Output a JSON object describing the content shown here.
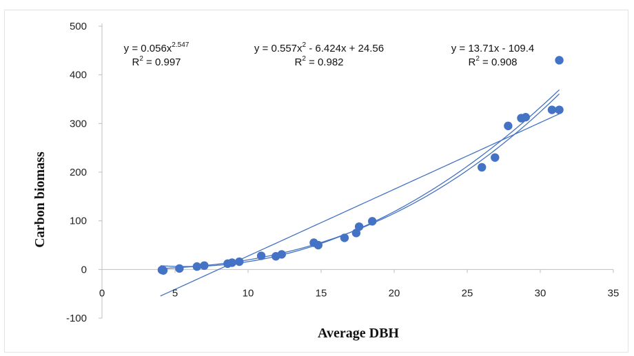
{
  "chart_data": {
    "type": "scatter",
    "title": "",
    "xlabel": "Average DBH",
    "ylabel": "Carbon biomass",
    "xlim": [
      0,
      35
    ],
    "ylim": [
      -100,
      500
    ],
    "x_ticks": [
      "0",
      "5",
      "10",
      "15",
      "20",
      "25",
      "30",
      "35"
    ],
    "y_ticks": [
      "-100",
      "0",
      "100",
      "200",
      "300",
      "400",
      "500"
    ],
    "grid": false,
    "legend": "none",
    "point_color": "#4472C4",
    "line_color": "#4472C4",
    "points": [
      {
        "x": 4.1,
        "y": -1
      },
      {
        "x": 4.2,
        "y": -2
      },
      {
        "x": 5.3,
        "y": 2
      },
      {
        "x": 6.5,
        "y": 6
      },
      {
        "x": 7.0,
        "y": 8
      },
      {
        "x": 8.6,
        "y": 12
      },
      {
        "x": 8.9,
        "y": 14
      },
      {
        "x": 9.4,
        "y": 16
      },
      {
        "x": 10.9,
        "y": 28
      },
      {
        "x": 11.9,
        "y": 27
      },
      {
        "x": 12.3,
        "y": 31
      },
      {
        "x": 14.5,
        "y": 55
      },
      {
        "x": 14.8,
        "y": 50
      },
      {
        "x": 16.6,
        "y": 65
      },
      {
        "x": 17.4,
        "y": 75
      },
      {
        "x": 17.6,
        "y": 88
      },
      {
        "x": 18.5,
        "y": 99
      },
      {
        "x": 26.0,
        "y": 210
      },
      {
        "x": 26.9,
        "y": 230
      },
      {
        "x": 27.8,
        "y": 295
      },
      {
        "x": 28.7,
        "y": 311
      },
      {
        "x": 29.0,
        "y": 313
      },
      {
        "x": 30.8,
        "y": 328
      },
      {
        "x": 31.3,
        "y": 328
      },
      {
        "x": 31.3,
        "y": 430
      }
    ],
    "trendlines": [
      {
        "kind": "power",
        "a": 0.056,
        "b": 2.547,
        "range": [
          4,
          31.3
        ]
      },
      {
        "kind": "polynomial",
        "c2": 0.557,
        "c1": -6.424,
        "c0": 24.56,
        "range": [
          4,
          31.3
        ]
      },
      {
        "kind": "linear",
        "slope": 13.71,
        "intercept": -109.4,
        "range": [
          4,
          31.3
        ]
      }
    ],
    "annotations": [
      {
        "eq_pre": "y = 0.056x",
        "eq_sup": "2.547",
        "eq_post": "",
        "r2_value": "0.997"
      },
      {
        "eq_pre": "y = 0.557x",
        "eq_sup": "2",
        "eq_post": " - 6.424x + 24.56",
        "r2_value": "0.982"
      },
      {
        "eq_pre": "y = 13.71x - 109.4",
        "eq_sup": "",
        "eq_post": "",
        "r2_value": "0.908"
      }
    ]
  }
}
